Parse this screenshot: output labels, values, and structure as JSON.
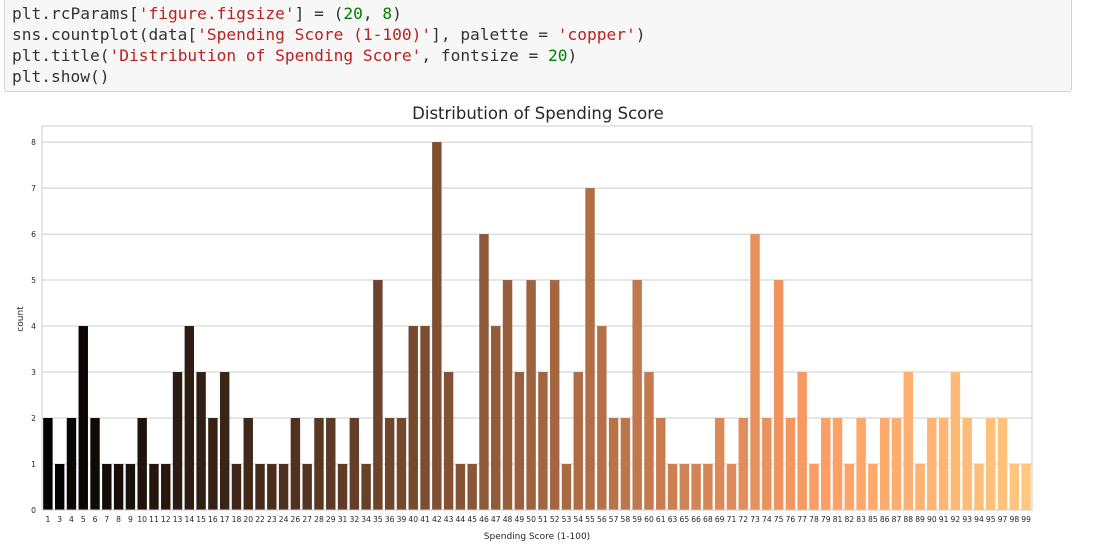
{
  "code_cell": {
    "lines": [
      [
        {
          "t": "plt.rcParams[",
          "c": ""
        },
        {
          "t": "'figure.figsize'",
          "c": "str"
        },
        {
          "t": "] = (",
          "c": ""
        },
        {
          "t": "20",
          "c": "num"
        },
        {
          "t": ", ",
          "c": ""
        },
        {
          "t": "8",
          "c": "num"
        },
        {
          "t": ")",
          "c": ""
        }
      ],
      [
        {
          "t": "sns.countplot(data[",
          "c": ""
        },
        {
          "t": "'Spending Score (1-100)'",
          "c": "str"
        },
        {
          "t": "], palette = ",
          "c": ""
        },
        {
          "t": "'copper'",
          "c": "str"
        },
        {
          "t": ")",
          "c": ""
        }
      ],
      [
        {
          "t": "plt.title(",
          "c": ""
        },
        {
          "t": "'Distribution of Spending Score'",
          "c": "str"
        },
        {
          "t": ", fontsize = ",
          "c": ""
        },
        {
          "t": "20",
          "c": "num"
        },
        {
          "t": ")",
          "c": ""
        }
      ],
      [
        {
          "t": "plt.show()",
          "c": ""
        }
      ]
    ]
  },
  "chart_data": {
    "type": "bar",
    "title": "Distribution of Spending Score",
    "xlabel": "Spending Score (1-100)",
    "ylabel": "count",
    "ylim": [
      0,
      8.35
    ],
    "yticks": [
      0,
      1,
      2,
      3,
      4,
      5,
      6,
      7,
      8
    ],
    "grid": true,
    "palette": "copper",
    "categories": [
      "1",
      "3",
      "4",
      "5",
      "6",
      "7",
      "8",
      "9",
      "10",
      "11",
      "12",
      "13",
      "14",
      "15",
      "16",
      "17",
      "18",
      "20",
      "22",
      "23",
      "24",
      "26",
      "27",
      "28",
      "29",
      "31",
      "32",
      "34",
      "35",
      "36",
      "39",
      "40",
      "41",
      "42",
      "43",
      "44",
      "45",
      "46",
      "47",
      "48",
      "49",
      "50",
      "51",
      "52",
      "53",
      "54",
      "55",
      "56",
      "57",
      "58",
      "59",
      "60",
      "61",
      "63",
      "65",
      "66",
      "68",
      "69",
      "71",
      "72",
      "73",
      "74",
      "75",
      "76",
      "77",
      "78",
      "79",
      "81",
      "82",
      "83",
      "85",
      "86",
      "87",
      "88",
      "89",
      "90",
      "91",
      "92",
      "93",
      "94",
      "95",
      "97",
      "98",
      "99"
    ],
    "values": [
      2,
      1,
      2,
      4,
      2,
      1,
      1,
      1,
      2,
      1,
      1,
      3,
      4,
      3,
      2,
      3,
      1,
      2,
      1,
      1,
      1,
      2,
      1,
      2,
      2,
      1,
      2,
      1,
      5,
      2,
      2,
      4,
      4,
      8,
      3,
      1,
      1,
      6,
      4,
      5,
      3,
      5,
      3,
      5,
      1,
      3,
      7,
      4,
      2,
      2,
      5,
      3,
      2,
      1,
      1,
      1,
      1,
      2,
      1,
      2,
      6,
      2,
      5,
      2,
      3,
      1,
      2,
      2,
      1,
      2,
      1,
      2,
      2,
      3,
      1,
      2,
      2,
      3,
      2,
      1,
      2,
      2,
      1,
      1
    ]
  }
}
